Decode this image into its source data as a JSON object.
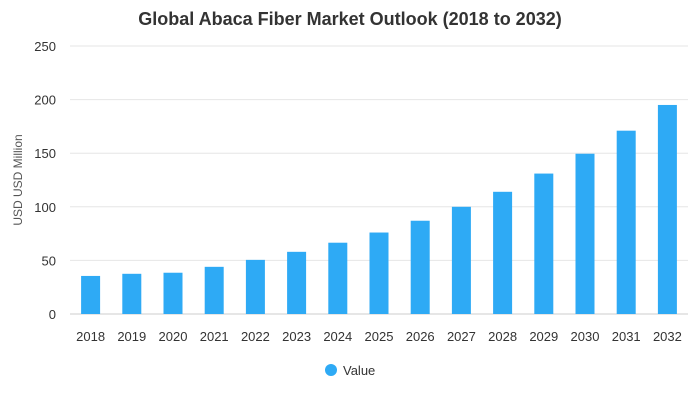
{
  "chart_data": {
    "type": "bar",
    "title": "Global Abaca Fiber Market Outlook (2018 to 2032)",
    "xlabel": "",
    "ylabel": "USD USD Million",
    "ylim": [
      0,
      250
    ],
    "yticks": [
      0,
      50,
      100,
      150,
      200,
      250
    ],
    "categories": [
      "2018",
      "2019",
      "2020",
      "2021",
      "2022",
      "2023",
      "2024",
      "2025",
      "2026",
      "2027",
      "2028",
      "2029",
      "2030",
      "2031",
      "2032"
    ],
    "series": [
      {
        "name": "Value",
        "color": "#2eaaf5",
        "values": [
          35.5,
          37.5,
          38.5,
          44,
          50.5,
          58,
          66.5,
          76,
          87,
          100,
          114,
          131,
          149.5,
          171,
          195
        ]
      }
    ],
    "grid": true,
    "legend": "bottom-center"
  }
}
